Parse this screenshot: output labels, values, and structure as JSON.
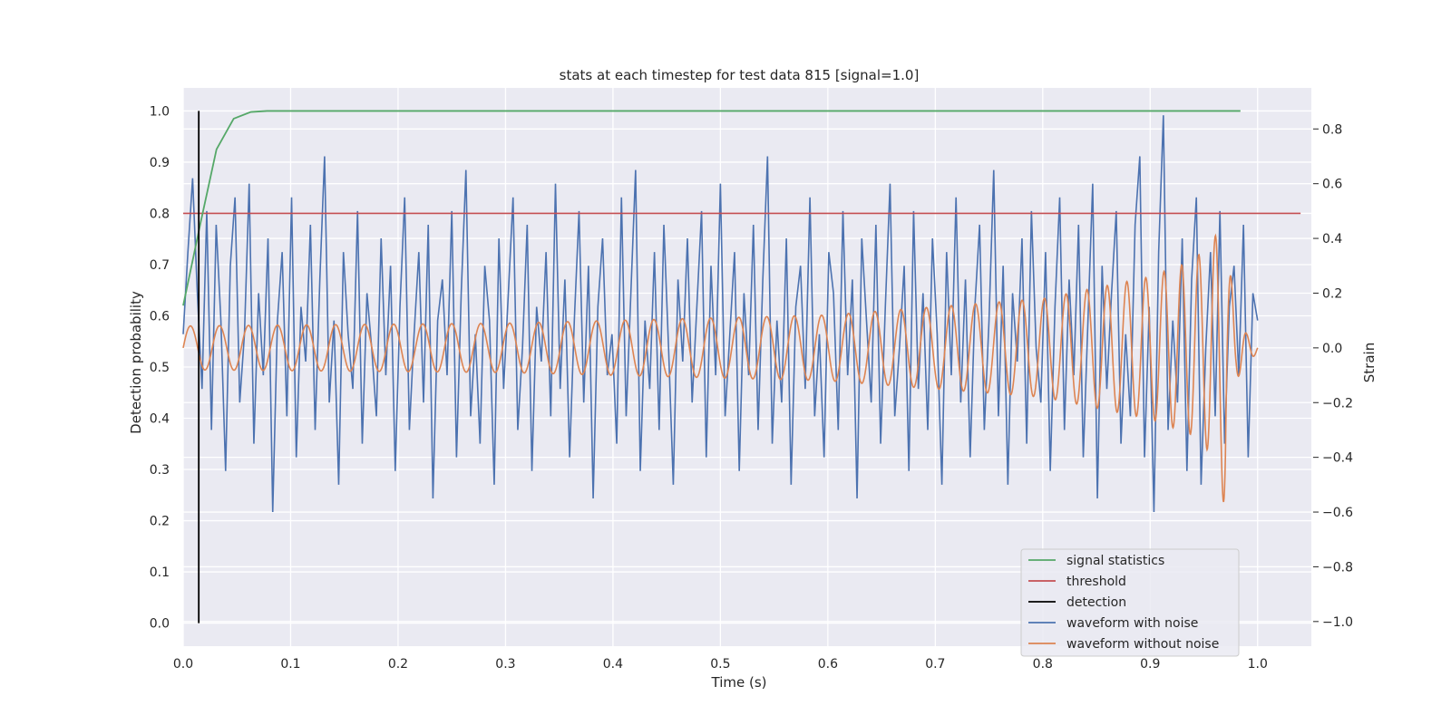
{
  "chart_data": {
    "type": "line",
    "title": "stats at each timestep for test data 815 [signal=1.0]",
    "xlabel": "Time (s)",
    "ylabel_left": "Detection probability",
    "ylabel_right": "Strain",
    "xlim": [
      0.0,
      1.05
    ],
    "ylim_left": [
      -0.045,
      1.045
    ],
    "ylim_right": [
      -1.09,
      0.95
    ],
    "x_ticks": [
      "0.0",
      "0.1",
      "0.2",
      "0.3",
      "0.4",
      "0.5",
      "0.6",
      "0.7",
      "0.8",
      "0.9",
      "1.0"
    ],
    "y_ticks_left": [
      "0.0",
      "0.1",
      "0.2",
      "0.3",
      "0.4",
      "0.5",
      "0.6",
      "0.7",
      "0.8",
      "0.9",
      "1.0"
    ],
    "y_ticks_right": [
      "−1.0",
      "−0.8",
      "−0.6",
      "−0.4",
      "−0.2",
      "0.0",
      "0.2",
      "0.4",
      "0.6",
      "0.8"
    ],
    "grid": true,
    "legend_position": "lower-right",
    "colors": {
      "signal_statistics": "#55a868",
      "threshold": "#c44e52",
      "detection": "#000000",
      "waveform_with_noise": "#4c72b0",
      "waveform_without_noise": "#dd8452",
      "background": "#eaeaf2"
    },
    "series": [
      {
        "name": "signal statistics",
        "axis": "left",
        "x": [
          0.0,
          0.016,
          0.031,
          0.047,
          0.063,
          0.078,
          0.094,
          0.2,
          0.4,
          0.6,
          0.8,
          0.984
        ],
        "y": [
          0.62,
          0.78,
          0.925,
          0.985,
          0.998,
          1.0,
          1.0,
          1.0,
          1.0,
          1.0,
          1.0,
          1.0
        ]
      },
      {
        "name": "threshold",
        "axis": "left",
        "x": [
          0.0,
          1.04
        ],
        "y": [
          0.8,
          0.8
        ]
      },
      {
        "name": "detection",
        "axis": "left",
        "x": [
          0.0145,
          0.0145
        ],
        "y": [
          0.0,
          1.0
        ]
      },
      {
        "name": "waveform with noise",
        "axis": "right",
        "x_start": 0.0,
        "x_end": 1.0,
        "y": [
          0.05,
          0.35,
          0.62,
          0.2,
          -0.15,
          0.5,
          -0.3,
          0.45,
          0.1,
          -0.45,
          0.3,
          0.55,
          -0.2,
          0.05,
          0.6,
          -0.35,
          0.2,
          -0.1,
          0.4,
          -0.6,
          0.1,
          0.35,
          -0.25,
          0.55,
          -0.4,
          0.15,
          -0.05,
          0.45,
          -0.3,
          0.25,
          0.7,
          -0.2,
          0.1,
          -0.5,
          0.35,
          0.05,
          -0.15,
          0.5,
          -0.35,
          0.2,
          0.0,
          -0.25,
          0.4,
          -0.1,
          0.3,
          -0.45,
          0.15,
          0.55,
          -0.3,
          0.05,
          0.35,
          -0.2,
          0.45,
          -0.55,
          0.1,
          0.25,
          -0.1,
          0.5,
          -0.4,
          0.2,
          0.65,
          -0.25,
          0.05,
          -0.35,
          0.3,
          0.1,
          -0.5,
          0.4,
          -0.15,
          0.2,
          0.55,
          -0.3,
          0.0,
          0.45,
          -0.45,
          0.15,
          -0.05,
          0.35,
          -0.25,
          0.6,
          -0.15,
          0.25,
          -0.4,
          0.1,
          0.5,
          -0.2,
          0.3,
          -0.55,
          0.15,
          0.4,
          -0.1,
          0.05,
          -0.35,
          0.55,
          -0.25,
          0.2,
          0.65,
          -0.45,
          0.1,
          -0.15,
          0.35,
          -0.3,
          0.45,
          0.0,
          -0.5,
          0.25,
          -0.05,
          0.4,
          -0.2,
          0.15,
          0.5,
          -0.4,
          0.3,
          -0.1,
          0.6,
          -0.25,
          0.05,
          0.35,
          -0.45,
          0.2,
          -0.1,
          0.45,
          -0.3,
          0.25,
          0.7,
          -0.35,
          0.1,
          -0.2,
          0.4,
          -0.5,
          0.15,
          0.3,
          -0.15,
          0.55,
          -0.25,
          0.05,
          -0.4,
          0.35,
          0.2,
          -0.3,
          0.5,
          -0.1,
          0.25,
          -0.55,
          0.4,
          0.1,
          -0.2,
          0.45,
          -0.35,
          0.15,
          0.6,
          -0.25,
          0.0,
          0.3,
          -0.45,
          0.5,
          -0.15,
          0.2,
          -0.3,
          0.4,
          0.05,
          -0.5,
          0.35,
          -0.1,
          0.55,
          -0.2,
          0.25,
          -0.4,
          0.15,
          0.45,
          -0.3,
          0.1,
          0.65,
          -0.25,
          0.3,
          -0.5,
          0.2,
          -0.05,
          0.4,
          -0.35,
          0.5,
          0.0,
          -0.2,
          0.35,
          -0.45,
          0.15,
          0.55,
          -0.3,
          0.25,
          -0.1,
          0.45,
          -0.4,
          0.1,
          0.6,
          -0.55,
          0.3,
          -0.15,
          0.2,
          0.5,
          -0.35,
          0.05,
          -0.25,
          0.45,
          0.7,
          -0.4,
          0.15,
          -0.6,
          0.35,
          0.85,
          -0.3,
          0.1,
          -0.2,
          0.4,
          -0.45,
          0.25,
          0.55,
          -0.5,
          0.0,
          0.35,
          -0.25,
          0.5,
          -0.35,
          0.15,
          0.3,
          -0.1,
          0.45,
          -0.4,
          0.2,
          0.1
        ]
      },
      {
        "name": "waveform without noise",
        "axis": "right",
        "envelope_t": [
          0.0,
          0.3,
          0.6,
          0.8,
          0.9,
          0.94,
          0.96,
          0.966,
          0.97,
          0.972,
          0.98,
          0.99,
          1.0
        ],
        "envelope_amp": [
          0.08,
          0.09,
          0.12,
          0.18,
          0.26,
          0.32,
          0.4,
          0.5,
          0.62,
          0.35,
          0.12,
          0.05,
          0.02
        ],
        "base_frequency_hz": 37,
        "chirp_coefficient": 6.0
      }
    ]
  },
  "legend": [
    {
      "label": "signal statistics",
      "color": "#55a868"
    },
    {
      "label": "threshold",
      "color": "#c44e52"
    },
    {
      "label": "detection",
      "color": "#000000"
    },
    {
      "label": "waveform with noise",
      "color": "#4c72b0"
    },
    {
      "label": "waveform without noise",
      "color": "#dd8452"
    }
  ]
}
